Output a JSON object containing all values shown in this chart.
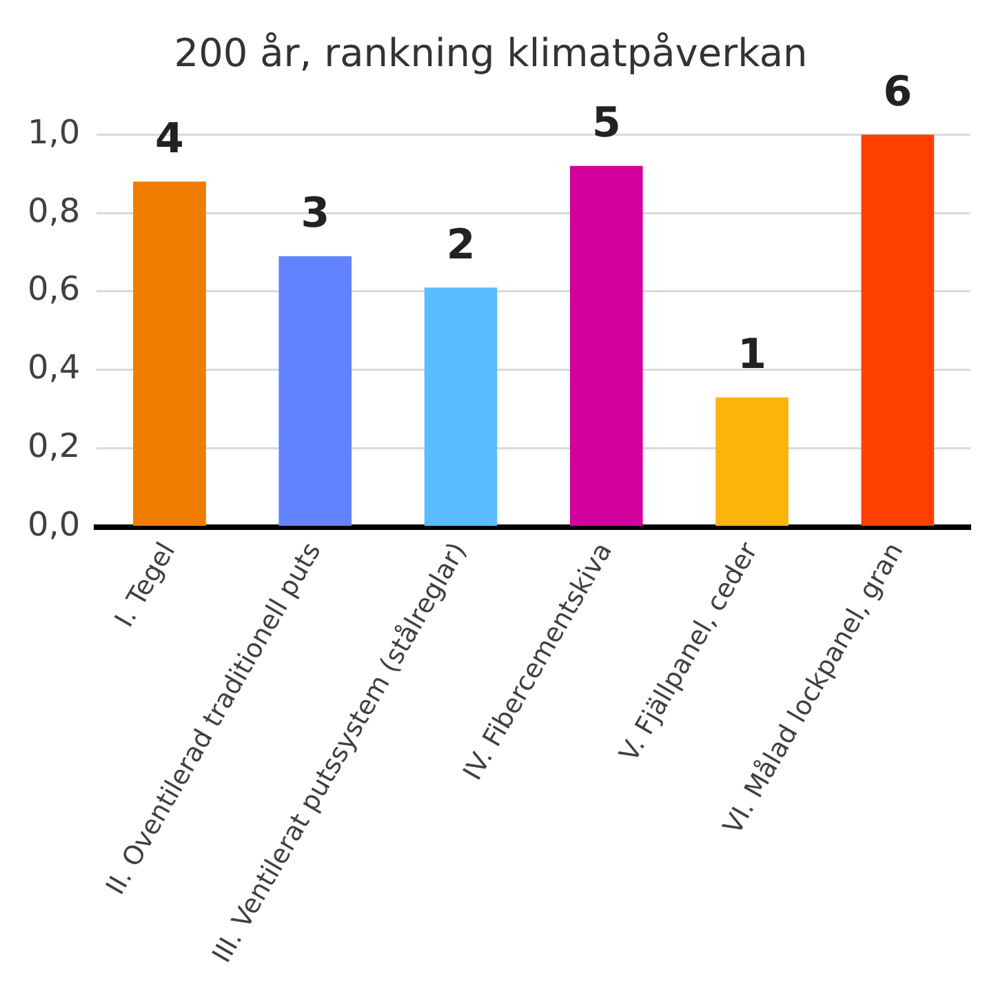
{
  "chart_data": {
    "type": "bar",
    "title": "200 år, rankning klimatpåverkan",
    "categories": [
      "I. Tegel",
      "II. Oventilerad traditionell puts",
      "III. Ventilerat putssystem (stålreglar)",
      "IV. Fibercementskiva",
      "V. Fjällpanel, ceder",
      "VI. Målad lockpanel, gran"
    ],
    "values": [
      0.88,
      0.69,
      0.61,
      0.92,
      0.33,
      1.0
    ],
    "annotations": [
      {
        "text": "4",
        "x": "I. Tegel",
        "y": 0.88
      },
      {
        "text": "3",
        "x": "II. Oventilerad traditionell puts",
        "y": 0.69
      },
      {
        "text": "2",
        "x": "III. Ventilerat putssystem (stålreglar)",
        "y": 0.61
      },
      {
        "text": "5",
        "x": "IV. Fibercementskiva",
        "y": 0.92
      },
      {
        "text": "1",
        "x": "V. Fjällpanel, ceder",
        "y": 0.33
      },
      {
        "text": "6",
        "x": "VI. Målad lockpanel, gran",
        "y": 1.0
      }
    ],
    "colors": [
      "#f07c00",
      "#6283ff",
      "#5bbcff",
      "#d4009c",
      "#fbb40a",
      "#ff4000"
    ],
    "ylim": [
      0,
      1.0
    ],
    "yticks": [
      {
        "value": 0,
        "label": "0,0"
      },
      {
        "value": 0.2,
        "label": "0,2"
      },
      {
        "value": 0.4,
        "label": "0,4"
      },
      {
        "value": 0.6,
        "label": "0,6"
      },
      {
        "value": 0.8,
        "label": "0,8"
      },
      {
        "value": 1.0,
        "label": "1,0"
      }
    ],
    "grid": "y"
  }
}
